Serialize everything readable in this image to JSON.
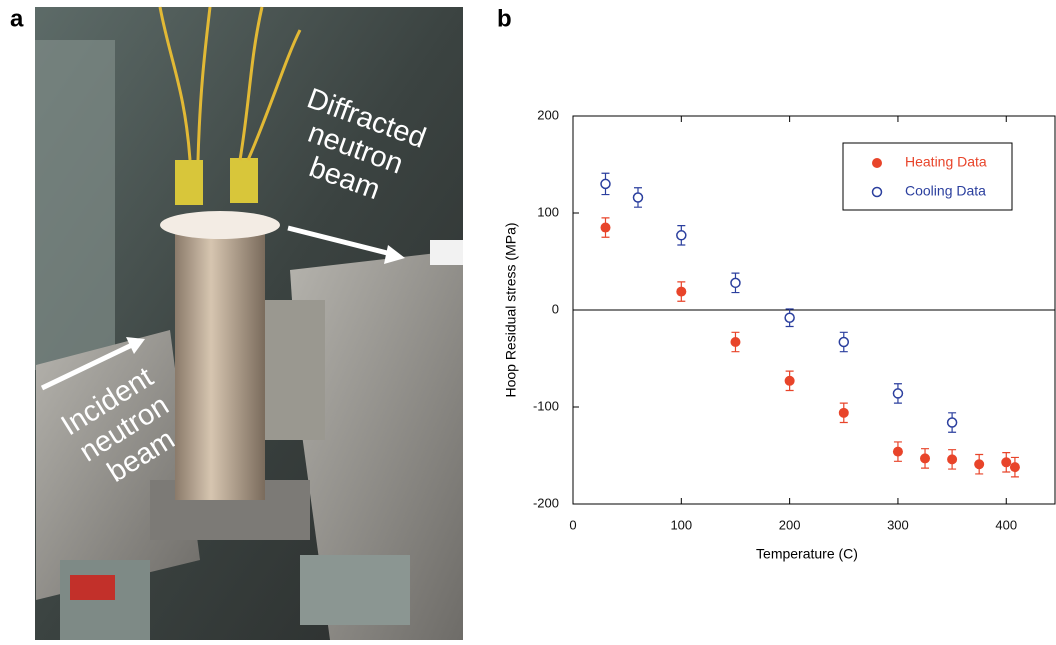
{
  "panels": [
    "a",
    "b"
  ],
  "photo": {
    "diffracted_label": [
      "Diffracted",
      "neutron",
      "beam"
    ],
    "incident_label": [
      "Incident",
      "neutron",
      "beam"
    ]
  },
  "chart_data": {
    "type": "scatter",
    "x_label": "Temperature (C)",
    "y_label": "Hoop Residual stress (MPa)",
    "xlim": [
      0,
      445
    ],
    "ylim": [
      -200,
      200
    ],
    "xticks": [
      0,
      100,
      200,
      300,
      400
    ],
    "yticks": [
      -200,
      -100,
      0,
      100,
      200
    ],
    "legend": "upper right",
    "series": [
      {
        "name": "Heating Data",
        "color": "#e8442a",
        "marker": "filled",
        "x": [
          30,
          100,
          150,
          200,
          250,
          300,
          325,
          350,
          375,
          400,
          408
        ],
        "values": [
          85,
          19,
          -33,
          -73,
          -106,
          -146,
          -153,
          -154,
          -159,
          -157,
          -162
        ],
        "errors": [
          10,
          10,
          10,
          10,
          10,
          10,
          10,
          10,
          10,
          10,
          10
        ]
      },
      {
        "name": "Cooling Data",
        "color": "#2b3f9e",
        "marker": "hollow",
        "x": [
          30,
          60,
          100,
          150,
          200,
          250,
          300,
          350
        ],
        "values": [
          130,
          116,
          77,
          28,
          -8,
          -33,
          -86,
          -116
        ],
        "errors": [
          11,
          10,
          10,
          10,
          9,
          10,
          10,
          10
        ]
      }
    ]
  }
}
